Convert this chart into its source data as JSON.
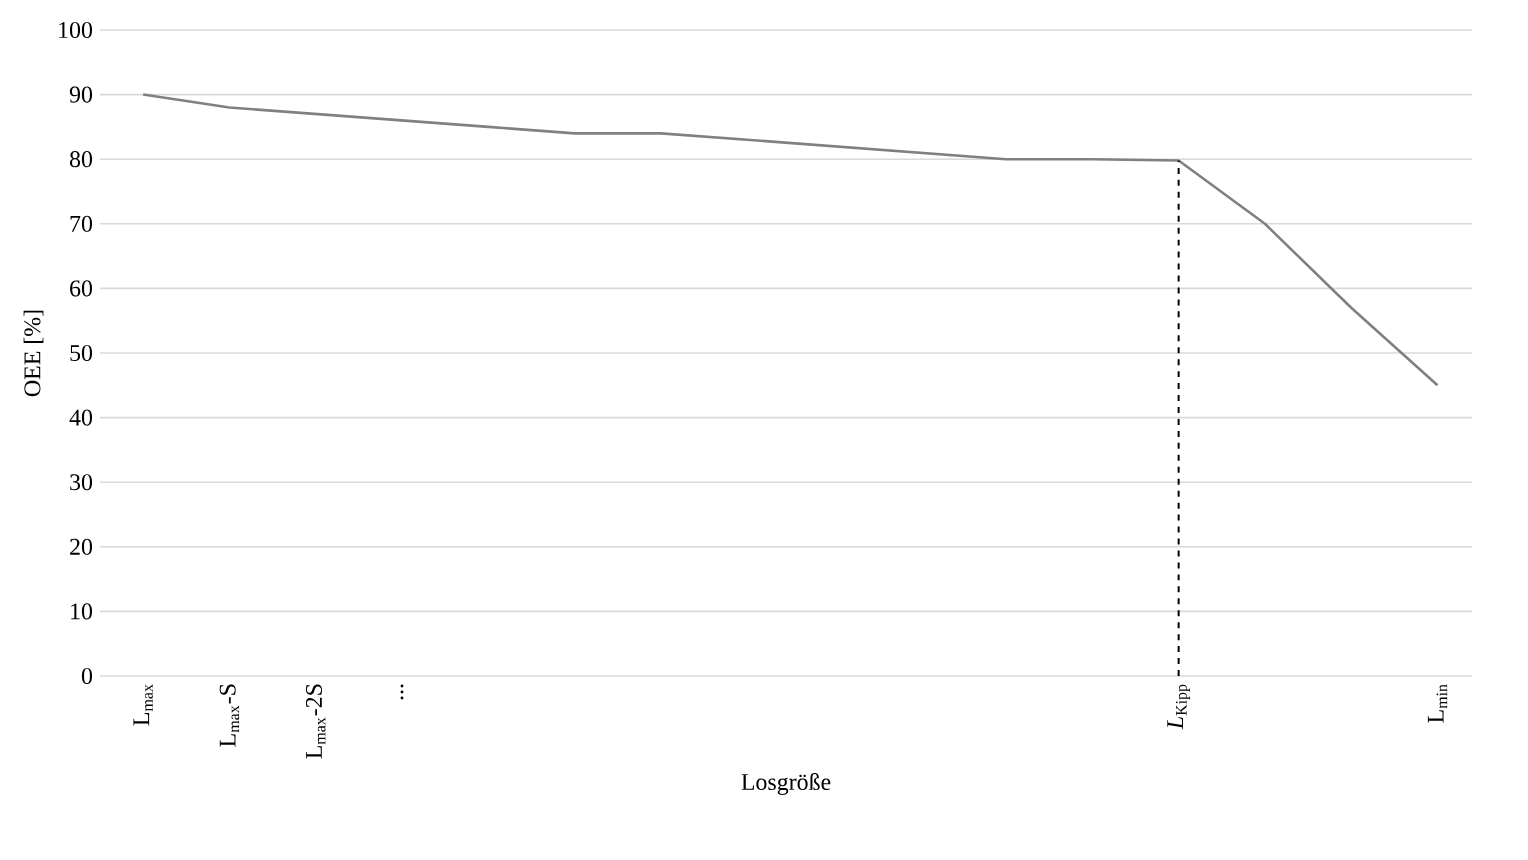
{
  "chart_data": {
    "type": "line",
    "xlabel": "Losgröße",
    "ylabel": "OEE [%]",
    "categories": [
      "L$_{max}$",
      "L$_{max}$-S",
      "L$_{max}$-2S",
      "...",
      null,
      null,
      null,
      null,
      null,
      null,
      null,
      null,
      "*L*$_{Kipp}$",
      null,
      null,
      "L$_{min}$"
    ],
    "series": [
      {
        "color": "#808080",
        "values": [
          90,
          88,
          87,
          86,
          85,
          84,
          84,
          83,
          82,
          81,
          80,
          80,
          79.8,
          70,
          57,
          45
        ]
      }
    ],
    "ylim": [
      0,
      100
    ],
    "yticks": [
      0,
      10,
      20,
      30,
      40,
      50,
      60,
      70,
      80,
      90,
      100
    ],
    "grid": "y",
    "ref_lines": [
      {
        "axis": "x",
        "value": "*L*$_{Kipp}$",
        "line_style": "dashed",
        "color": "#000000"
      }
    ]
  }
}
